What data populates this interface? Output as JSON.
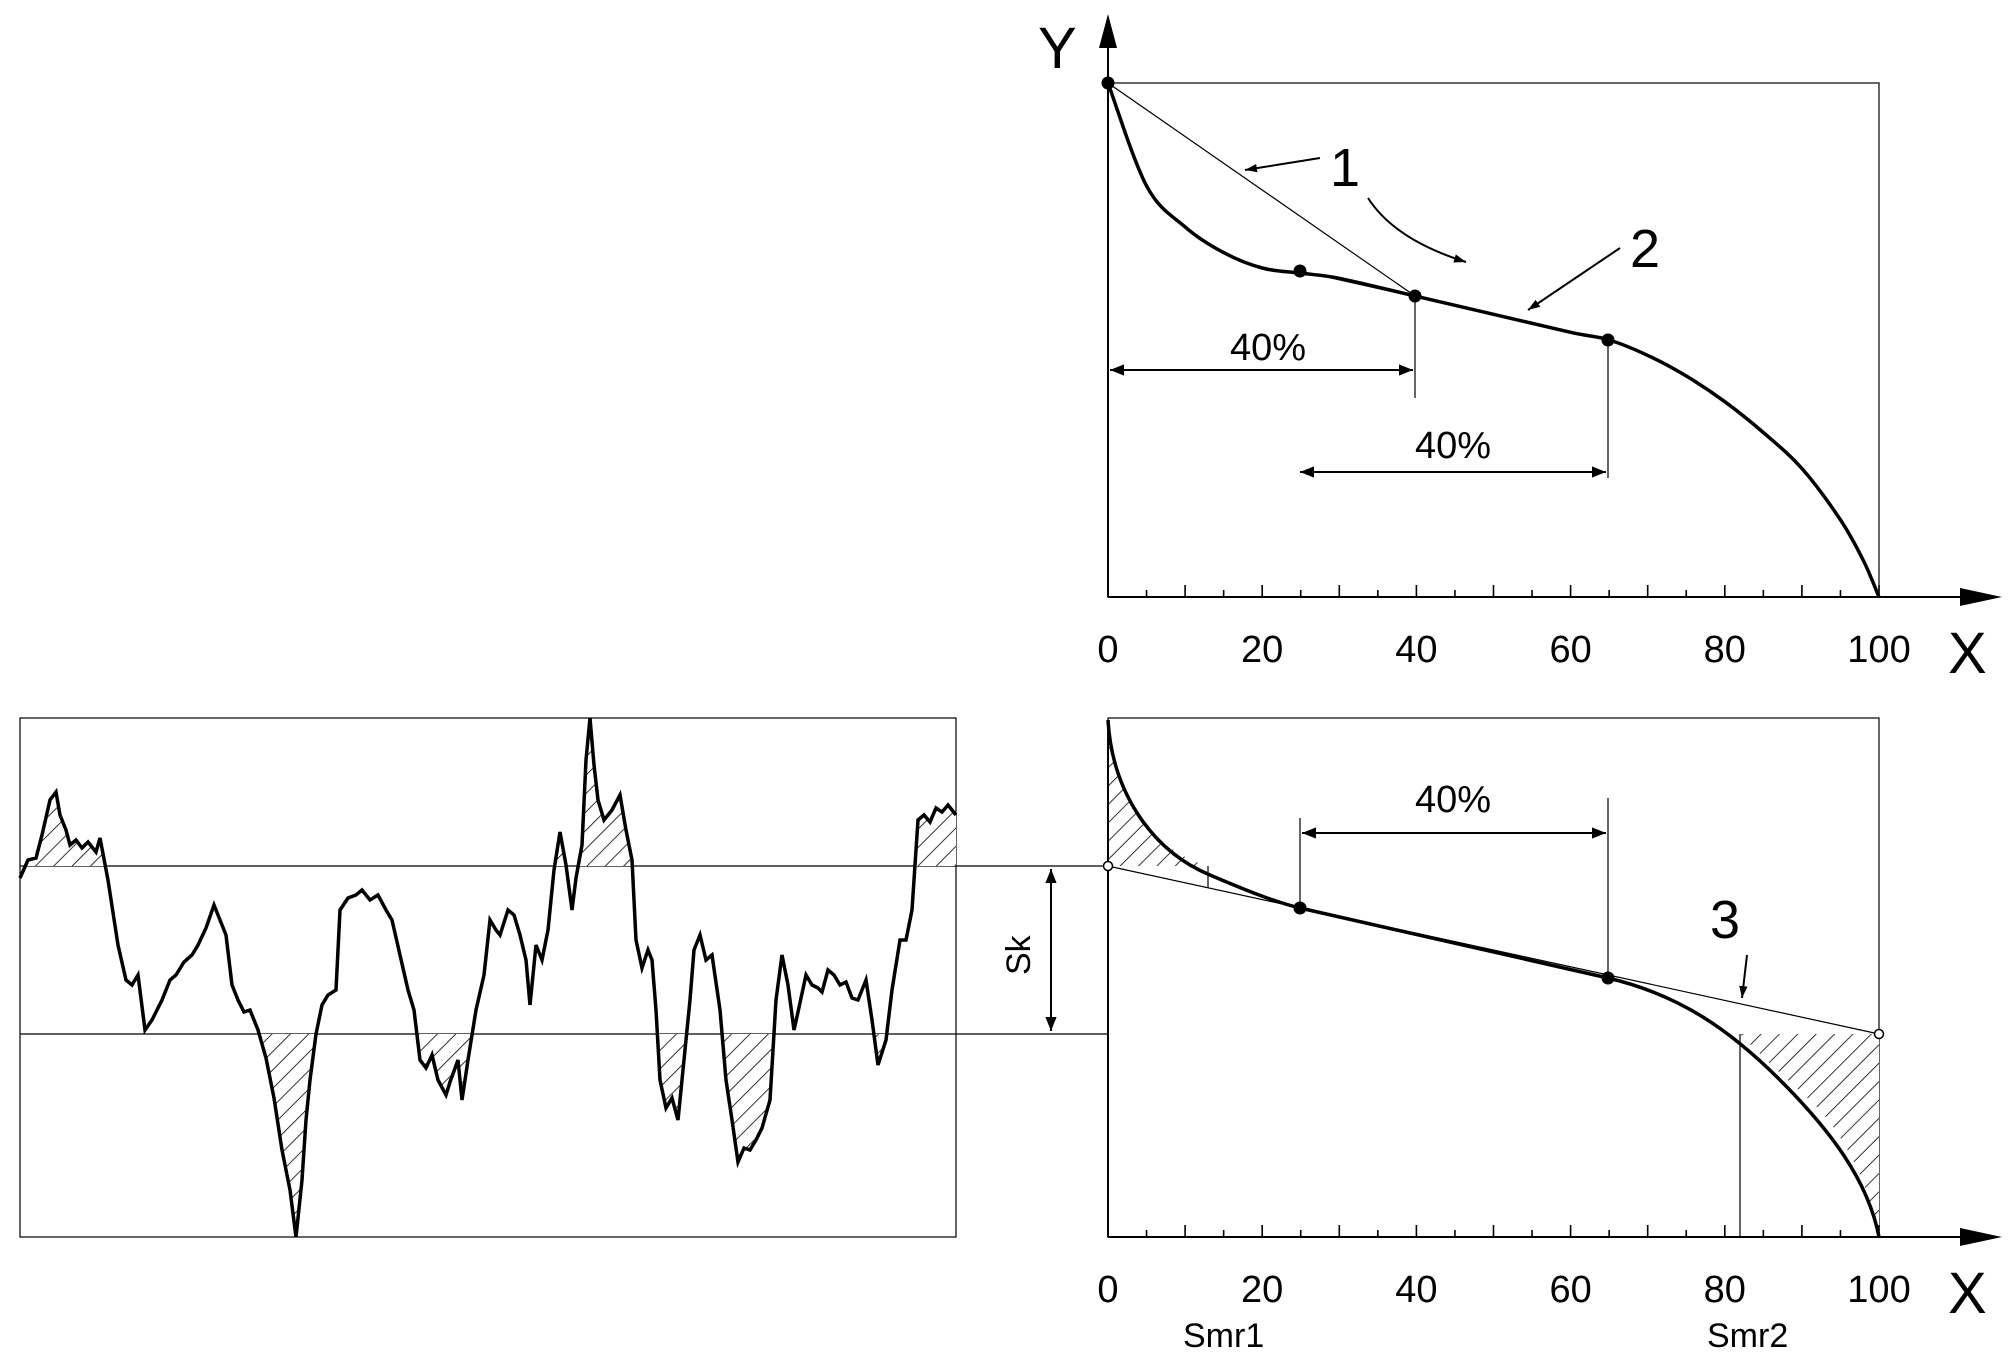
{
  "top_plot": {
    "y_axis_label": "Y",
    "x_axis_label": "X",
    "x_ticks": [
      "0",
      "20",
      "40",
      "60",
      "80",
      "100"
    ],
    "dim_label_1": "40%",
    "dim_label_2": "40%",
    "callout_1": "1",
    "callout_2": "2"
  },
  "bottom_plot": {
    "x_axis_label": "X",
    "x_ticks": [
      "0",
      "20",
      "40",
      "60",
      "80",
      "100"
    ],
    "dim_label": "40%",
    "callout_3": "3",
    "smr1_label": "Smr1",
    "smr2_label": "Smr2"
  },
  "profile_plot": {
    "sk_label": "Sk"
  },
  "chart_data": {
    "type": "line",
    "series": [
      {
        "x": [
          0,
          5,
          10,
          15,
          20,
          25,
          30,
          40,
          50,
          60,
          65,
          70,
          75,
          80,
          85,
          90,
          95,
          98,
          100
        ],
        "y": [
          100,
          80,
          72,
          67,
          64,
          63,
          62,
          58.5,
          55,
          51.5,
          50,
          47,
          43,
          38,
          32,
          25,
          15,
          7,
          0
        ]
      }
    ],
    "secant_points_x": [
      0,
      25,
      40,
      65
    ],
    "smr": [
      13,
      82
    ]
  }
}
